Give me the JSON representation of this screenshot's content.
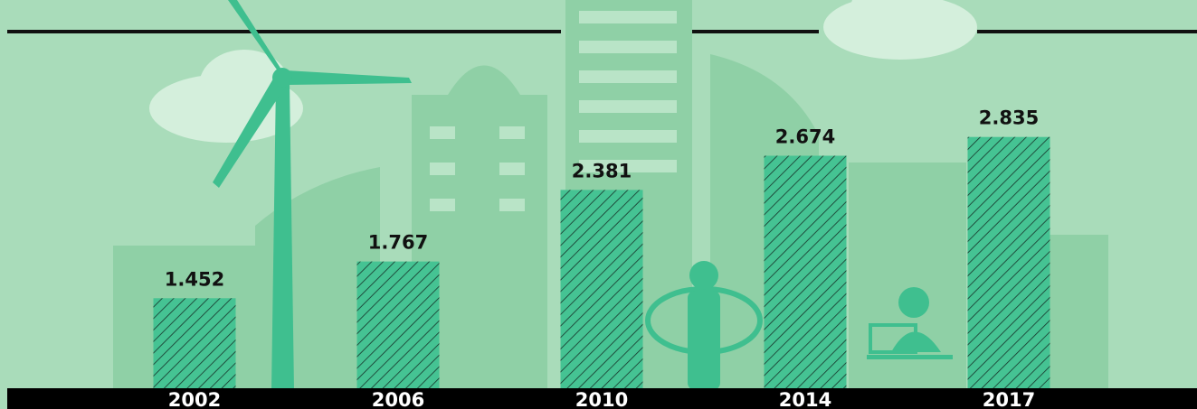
{
  "chart_data": {
    "type": "bar",
    "categories": [
      "2002",
      "2006",
      "2010",
      "2014",
      "2017"
    ],
    "values": [
      1.452,
      1.767,
      2.381,
      2.674,
      2.835
    ],
    "color": "#45c393",
    "ylim": [
      0.68,
      3.7
    ]
  }
}
